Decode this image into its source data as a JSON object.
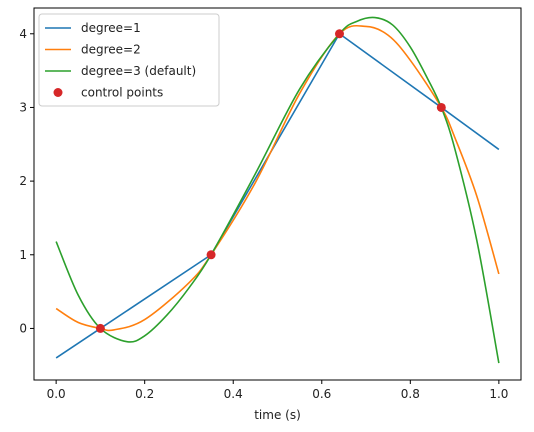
{
  "chart_data": {
    "type": "line",
    "title": "",
    "xlabel": "time (s)",
    "ylabel": "",
    "xlim": [
      -0.05,
      1.05
    ],
    "ylim": [
      -0.7,
      4.35
    ],
    "xticks": [
      0.0,
      0.2,
      0.4,
      0.6,
      0.8,
      1.0
    ],
    "xtick_labels": [
      "0.0",
      "0.2",
      "0.4",
      "0.6",
      "0.8",
      "1.0"
    ],
    "yticks": [
      0,
      1,
      2,
      3,
      4
    ],
    "ytick_labels": [
      "0",
      "1",
      "2",
      "3",
      "4"
    ],
    "grid": false,
    "legend_position": "top-left",
    "series": [
      {
        "name": "degree=1",
        "color": "#1f77b4",
        "marker": "none",
        "x": [
          0.0,
          0.1,
          0.35,
          0.64,
          0.87,
          1.0
        ],
        "y": [
          -0.4,
          0.0,
          1.0,
          4.0,
          3.0,
          2.43
        ]
      },
      {
        "name": "degree=2",
        "color": "#ff7f0e",
        "marker": "none",
        "x": [
          0.0,
          0.05,
          0.1,
          0.13,
          0.2,
          0.3,
          0.35,
          0.45,
          0.55,
          0.64,
          0.7,
          0.75,
          0.8,
          0.87,
          0.9,
          0.95,
          1.0
        ],
        "y": [
          0.27,
          0.08,
          0.0,
          -0.02,
          0.12,
          0.62,
          1.0,
          1.98,
          3.19,
          4.0,
          4.1,
          3.98,
          3.64,
          3.0,
          2.6,
          1.8,
          0.74
        ]
      },
      {
        "name": "degree=3 (default)",
        "color": "#2ca02c",
        "marker": "none",
        "x": [
          0.0,
          0.05,
          0.1,
          0.16,
          0.2,
          0.25,
          0.3,
          0.35,
          0.45,
          0.55,
          0.64,
          0.68,
          0.72,
          0.76,
          0.8,
          0.84,
          0.87,
          0.9,
          0.95,
          1.0
        ],
        "y": [
          1.18,
          0.45,
          0.0,
          -0.18,
          -0.1,
          0.18,
          0.55,
          1.0,
          2.1,
          3.25,
          4.0,
          4.17,
          4.22,
          4.12,
          3.82,
          3.38,
          3.0,
          2.45,
          1.2,
          -0.47
        ]
      },
      {
        "name": "control points",
        "color": "#d62728",
        "marker": "circle",
        "line": false,
        "x": [
          0.1,
          0.35,
          0.64,
          0.87
        ],
        "y": [
          0.0,
          1.0,
          4.0,
          3.0
        ]
      }
    ]
  }
}
